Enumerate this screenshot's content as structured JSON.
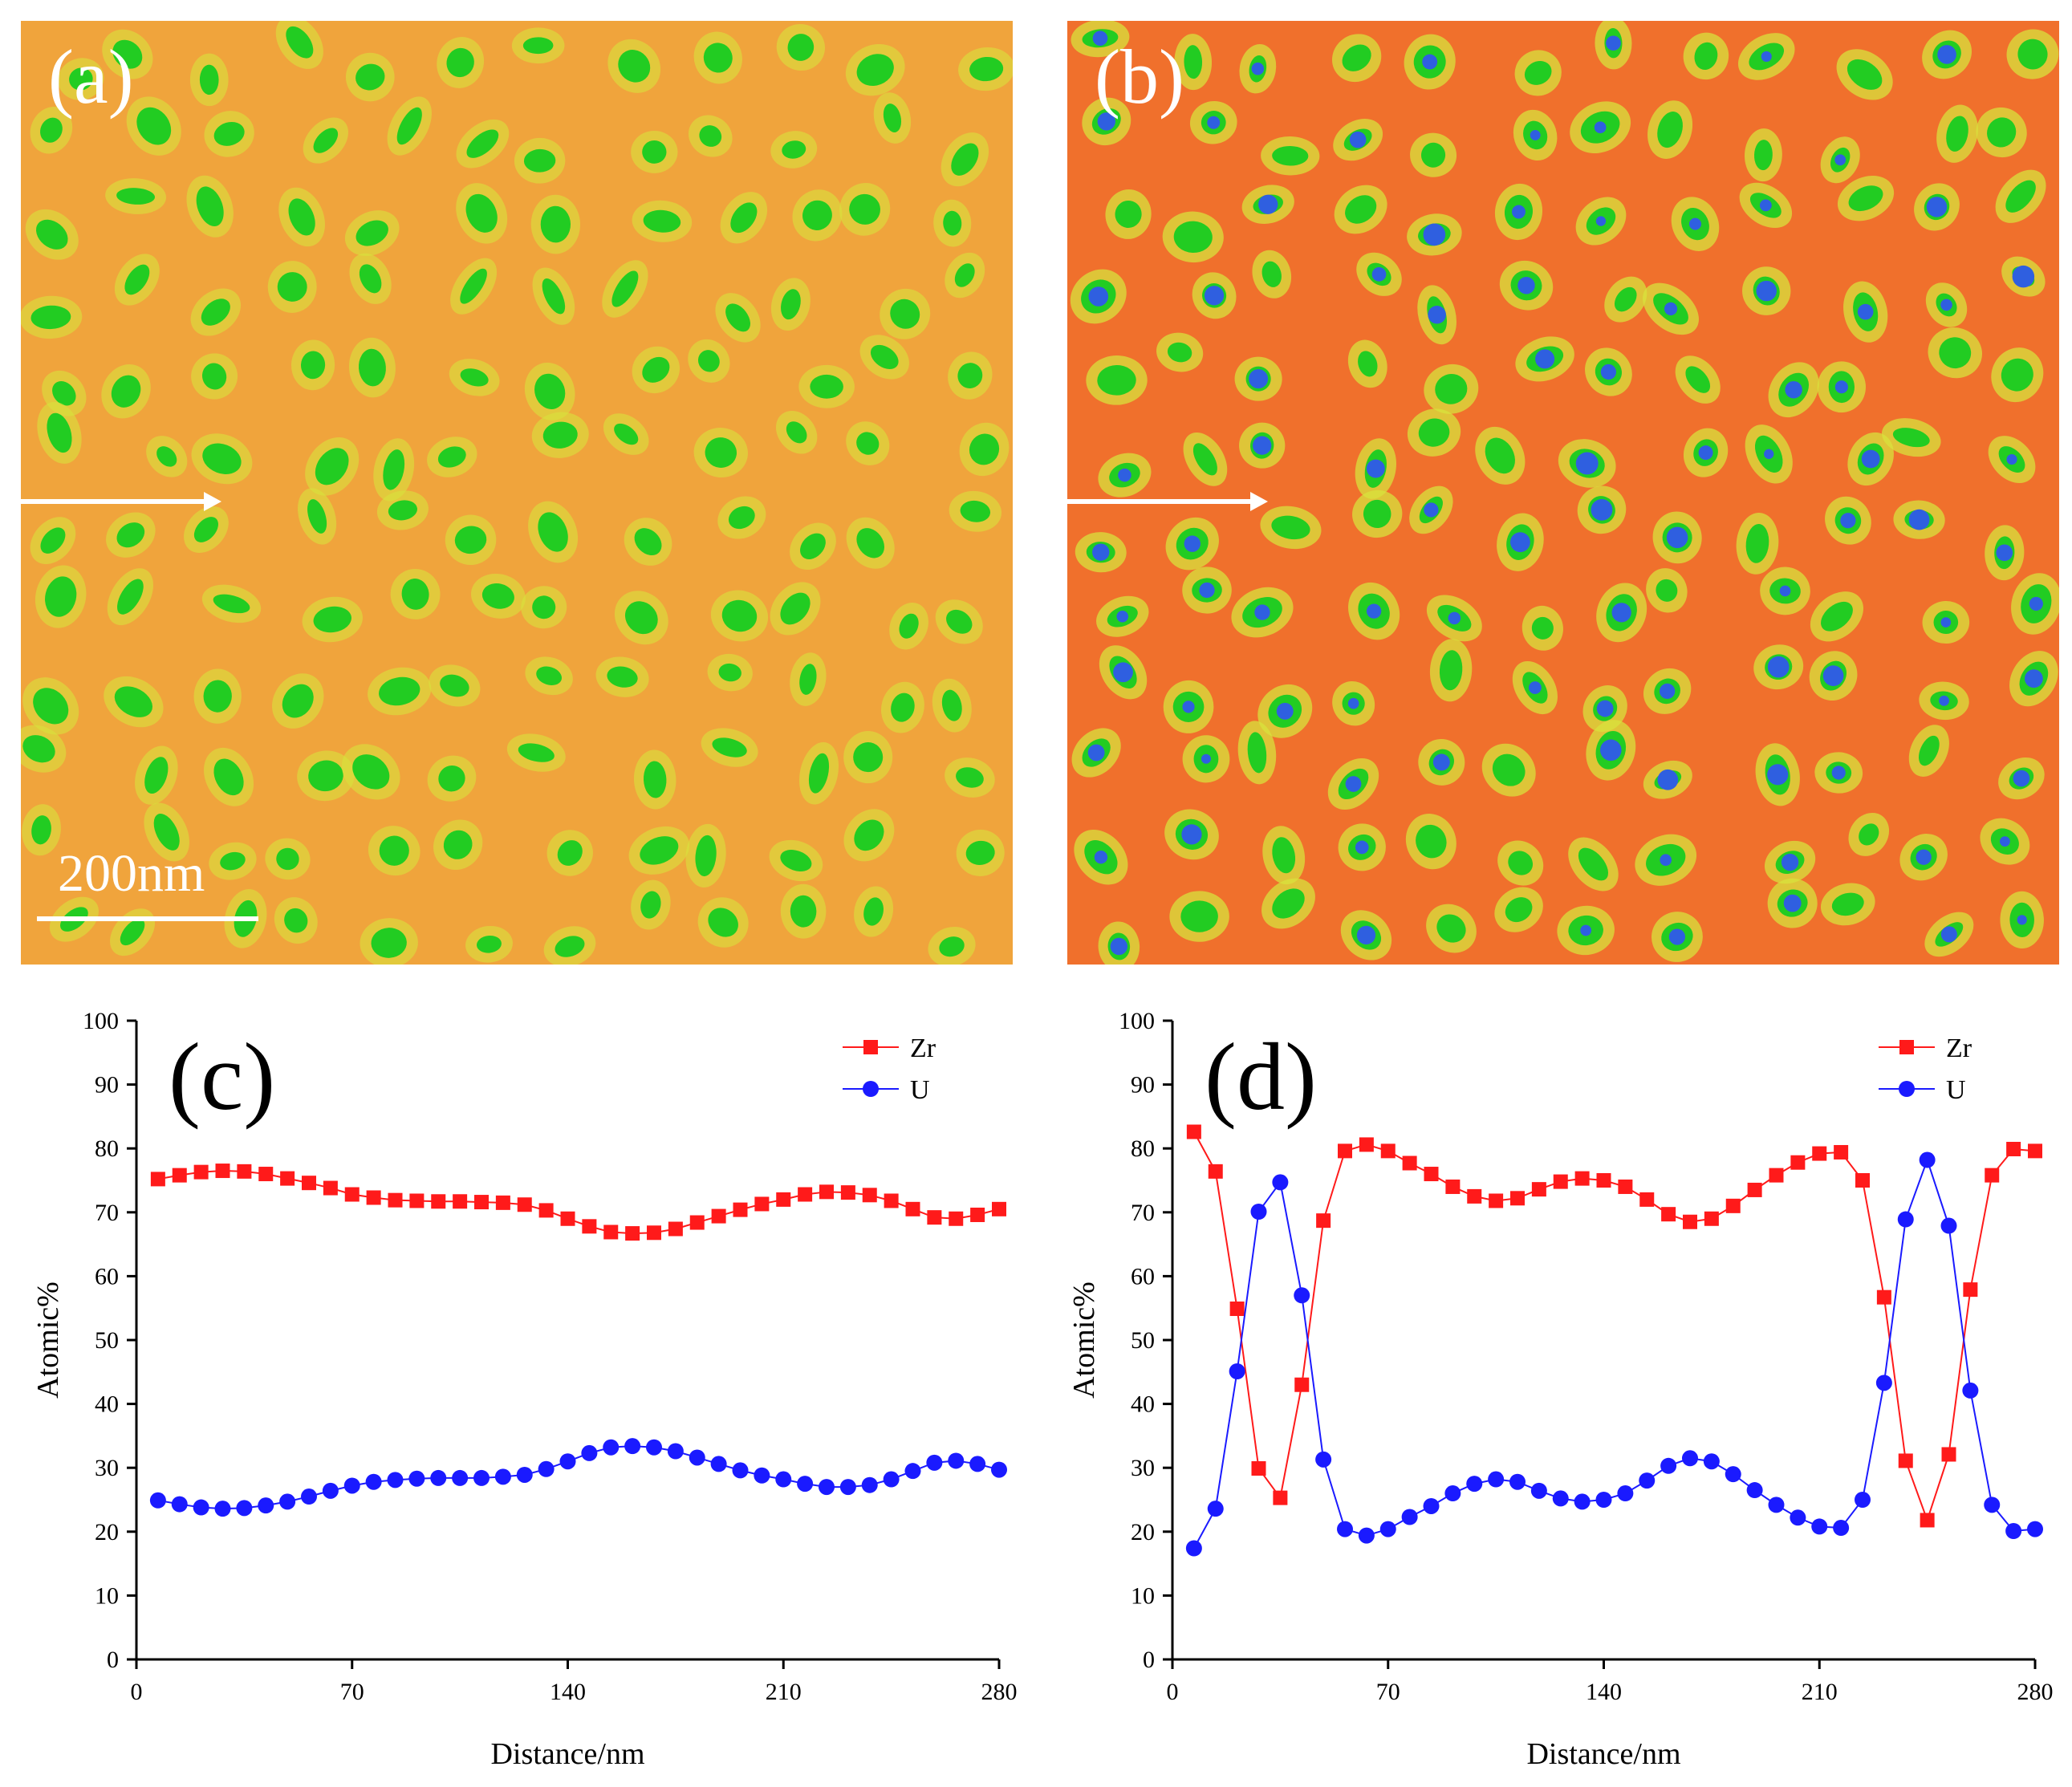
{
  "panels": {
    "a": {
      "label": "(a)",
      "scale_bar": "200nm"
    },
    "b": {
      "label": "(b)"
    }
  },
  "colors": {
    "zr": "#ff1a1a",
    "u": "#1a1aff",
    "map_bg_a": "#f0a83a",
    "map_bg_b": "#f06a2a",
    "precipitate": "#1fd21f",
    "core": "#1a3ad8"
  },
  "chart_data": [
    {
      "id": "c",
      "type": "line",
      "panel_label": "(c)",
      "xlabel": "Distance/nm",
      "ylabel": "Atomic%",
      "xlim": [
        0,
        280
      ],
      "ylim": [
        0,
        100
      ],
      "xticks": [
        0,
        70,
        140,
        210,
        280
      ],
      "yticks": [
        0,
        10,
        20,
        30,
        40,
        50,
        60,
        70,
        80,
        90,
        100
      ],
      "legend_position": "top-right",
      "series": [
        {
          "name": "Zr",
          "color": "#ff1a1a",
          "marker": "square",
          "x": [
            7,
            14,
            21,
            28,
            35,
            42,
            49,
            56,
            63,
            70,
            77,
            84,
            91,
            98,
            105,
            112,
            119,
            126,
            133,
            140,
            147,
            154,
            161,
            168,
            175,
            182,
            189,
            196,
            203,
            210,
            217,
            224,
            231,
            238,
            245,
            252,
            259,
            266,
            273,
            280
          ],
          "y": [
            75.2,
            75.8,
            76.3,
            76.5,
            76.4,
            76.0,
            75.3,
            74.6,
            73.8,
            72.8,
            72.3,
            71.9,
            71.8,
            71.7,
            71.7,
            71.6,
            71.5,
            71.2,
            70.3,
            69.0,
            67.8,
            66.9,
            66.7,
            66.8,
            67.4,
            68.4,
            69.4,
            70.4,
            71.3,
            72.0,
            72.8,
            73.2,
            73.1,
            72.7,
            71.8,
            70.5,
            69.2,
            69.0,
            69.6,
            70.5
          ]
        },
        {
          "name": "U",
          "color": "#1a1aff",
          "marker": "circle",
          "x": [
            7,
            14,
            21,
            28,
            35,
            42,
            49,
            56,
            63,
            70,
            77,
            84,
            91,
            98,
            105,
            112,
            119,
            126,
            133,
            140,
            147,
            154,
            161,
            168,
            175,
            182,
            189,
            196,
            203,
            210,
            217,
            224,
            231,
            238,
            245,
            252,
            259,
            266,
            273,
            280
          ],
          "y": [
            24.9,
            24.3,
            23.8,
            23.6,
            23.7,
            24.1,
            24.7,
            25.5,
            26.4,
            27.2,
            27.8,
            28.1,
            28.3,
            28.4,
            28.4,
            28.4,
            28.6,
            28.9,
            29.8,
            31.0,
            32.3,
            33.2,
            33.4,
            33.2,
            32.6,
            31.6,
            30.6,
            29.6,
            28.8,
            28.2,
            27.5,
            27.0,
            27.0,
            27.3,
            28.2,
            29.5,
            30.8,
            31.1,
            30.6,
            29.7
          ]
        }
      ]
    },
    {
      "id": "d",
      "type": "line",
      "panel_label": "(d)",
      "xlabel": "Distance/nm",
      "ylabel": "Atomic%",
      "xlim": [
        0,
        280
      ],
      "ylim": [
        0,
        100
      ],
      "xticks": [
        0,
        70,
        140,
        210,
        280
      ],
      "yticks": [
        0,
        10,
        20,
        30,
        40,
        50,
        60,
        70,
        80,
        90,
        100
      ],
      "legend_position": "top-right",
      "series": [
        {
          "name": "Zr",
          "color": "#ff1a1a",
          "marker": "square",
          "x": [
            7,
            14,
            21,
            28,
            35,
            42,
            49,
            56,
            63,
            70,
            77,
            84,
            91,
            98,
            105,
            112,
            119,
            126,
            133,
            140,
            147,
            154,
            161,
            168,
            175,
            182,
            189,
            196,
            203,
            210,
            217,
            224,
            231,
            238,
            245,
            252,
            259,
            266,
            273,
            280
          ],
          "y": [
            82.6,
            76.4,
            54.9,
            29.9,
            25.3,
            43.0,
            68.7,
            79.6,
            80.6,
            79.6,
            77.7,
            76.0,
            74.0,
            72.5,
            71.8,
            72.2,
            73.6,
            74.8,
            75.3,
            75.0,
            74.0,
            72.0,
            69.7,
            68.5,
            69.0,
            71.0,
            73.5,
            75.8,
            77.8,
            79.2,
            79.4,
            75.0,
            56.7,
            31.1,
            21.8,
            32.1,
            57.9,
            75.8,
            79.9,
            79.6
          ]
        },
        {
          "name": "U",
          "color": "#1a1aff",
          "marker": "circle",
          "x": [
            7,
            14,
            21,
            28,
            35,
            42,
            49,
            56,
            63,
            70,
            77,
            84,
            91,
            98,
            105,
            112,
            119,
            126,
            133,
            140,
            147,
            154,
            161,
            168,
            175,
            182,
            189,
            196,
            203,
            210,
            217,
            224,
            231,
            238,
            245,
            252,
            259,
            266,
            273,
            280
          ],
          "y": [
            17.4,
            23.6,
            45.1,
            70.1,
            74.7,
            57.0,
            31.3,
            20.4,
            19.4,
            20.4,
            22.3,
            24.0,
            26.0,
            27.5,
            28.2,
            27.8,
            26.4,
            25.2,
            24.7,
            25.0,
            26.0,
            28.0,
            30.3,
            31.5,
            31.0,
            29.0,
            26.5,
            24.2,
            22.2,
            20.8,
            20.6,
            25.0,
            43.3,
            68.9,
            78.2,
            67.9,
            42.1,
            24.2,
            20.1,
            20.4
          ]
        }
      ]
    }
  ]
}
